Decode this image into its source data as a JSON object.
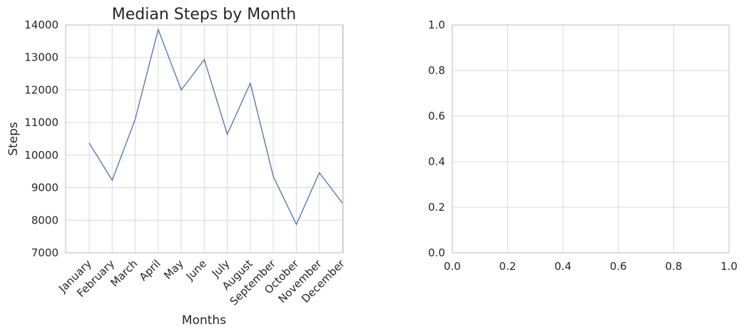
{
  "chart_data": [
    {
      "type": "line",
      "title": "Median Steps by Month",
      "xlabel": "Months",
      "ylabel": "Steps",
      "categories": [
        "January",
        "February",
        "March",
        "April",
        "May",
        "June",
        "July",
        "August",
        "September",
        "October",
        "November",
        "December"
      ],
      "series": [
        {
          "values": [
            10370,
            9230,
            11100,
            13860,
            12000,
            12940,
            10640,
            12210,
            9340,
            7870,
            9460,
            8530
          ]
        }
      ],
      "ylim": [
        7000,
        14000
      ],
      "yticks": [
        7000,
        8000,
        9000,
        10000,
        11000,
        12000,
        13000,
        14000
      ],
      "grid": true,
      "color": "#4c72b0"
    },
    {
      "type": "line",
      "title": "",
      "xlabel": "",
      "ylabel": "",
      "series": [],
      "xlim": [
        0,
        1
      ],
      "ylim": [
        0,
        1
      ],
      "xticks": [
        "0.0",
        "0.2",
        "0.4",
        "0.6",
        "0.8",
        "1.0"
      ],
      "yticks": [
        "0.0",
        "0.2",
        "0.4",
        "0.6",
        "0.8",
        "1.0"
      ],
      "grid": true
    }
  ]
}
